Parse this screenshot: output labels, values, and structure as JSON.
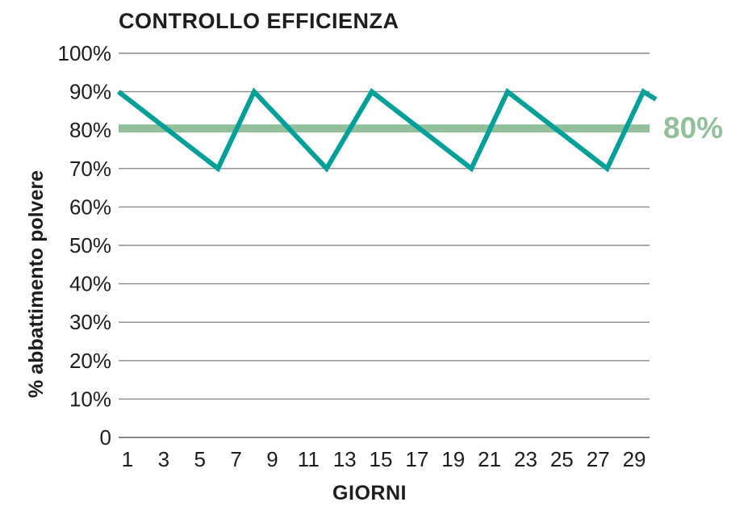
{
  "page": {
    "background_color": "#ffffff",
    "text_color": "#1d1d1b"
  },
  "chart_data": {
    "type": "line",
    "title": "CONTROLLO EFFICIENZA",
    "xlabel": "GIORNI",
    "ylabel": "% abbattimento polvere",
    "x_ticks": [
      "1",
      "3",
      "5",
      "7",
      "9",
      "11",
      "13",
      "15",
      "17",
      "19",
      "21",
      "23",
      "25",
      "27",
      "29"
    ],
    "x_tick_values": [
      1,
      3,
      5,
      7,
      9,
      11,
      13,
      15,
      17,
      19,
      21,
      23,
      25,
      27,
      29
    ],
    "y_ticks": [
      {
        "value": 0,
        "label": "0"
      },
      {
        "value": 10,
        "label": "10%"
      },
      {
        "value": 20,
        "label": "20%"
      },
      {
        "value": 30,
        "label": "30%"
      },
      {
        "value": 40,
        "label": "40%"
      },
      {
        "value": 50,
        "label": "50%"
      },
      {
        "value": 60,
        "label": "60%"
      },
      {
        "value": 70,
        "label": "70%"
      },
      {
        "value": 80,
        "label": "80%"
      },
      {
        "value": 90,
        "label": "90%"
      },
      {
        "value": 100,
        "label": "100%"
      }
    ],
    "xlim": [
      0.5,
      31
    ],
    "ylim": [
      0,
      100
    ],
    "grid": "horizontal-only",
    "legend": "none",
    "series": [
      {
        "name": "efficienza-abbattimento-polvere",
        "color": "#00a099",
        "stroke_width": 6,
        "points": [
          {
            "day": 0.5,
            "value": 90
          },
          {
            "day": 6,
            "value": 70
          },
          {
            "day": 8,
            "value": 90
          },
          {
            "day": 12,
            "value": 70
          },
          {
            "day": 14.5,
            "value": 90
          },
          {
            "day": 20,
            "value": 70
          },
          {
            "day": 22,
            "value": 90
          },
          {
            "day": 27.5,
            "value": 70
          },
          {
            "day": 29.5,
            "value": 90
          },
          {
            "day": 30.2,
            "value": 88
          }
        ]
      }
    ],
    "threshold": {
      "value": 80,
      "label": "80%",
      "color": "#92c09c",
      "band_thickness_px": 10
    },
    "colors": {
      "grid": "#8a8a8a",
      "axis": "#7a7a7a"
    }
  }
}
